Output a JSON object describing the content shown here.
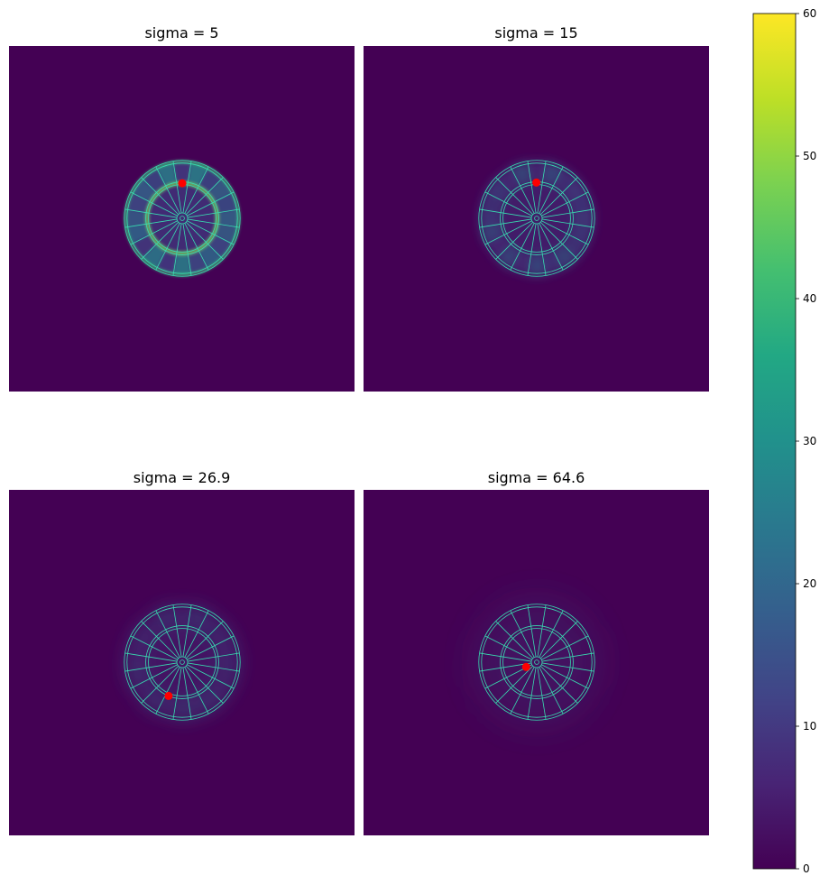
{
  "chart_data": {
    "type": "heatmap",
    "colormap": "viridis",
    "colorbar": {
      "min": 0,
      "max": 60,
      "ticks": [
        0,
        10,
        20,
        30,
        40,
        50,
        60
      ]
    },
    "board": {
      "segments": 20,
      "rings": [
        "inner-bull",
        "outer-bull",
        "triple-inner",
        "triple-outer",
        "double-inner",
        "double-outer"
      ]
    },
    "panels": [
      {
        "title": "sigma = 5",
        "sigma": 5,
        "optimum": {
          "x": 0,
          "y": 103
        },
        "sharp": true
      },
      {
        "title": "sigma = 15",
        "sigma": 15,
        "optimum": {
          "x": -1,
          "y": 105
        },
        "sharp": false
      },
      {
        "title": "sigma = 26.9",
        "sigma": 26.9,
        "optimum": {
          "x": -40,
          "y": -99
        },
        "sharp": false
      },
      {
        "title": "sigma = 64.6",
        "sigma": 64.6,
        "optimum": {
          "x": -31,
          "y": -14
        },
        "sharp": false
      }
    ],
    "marker_color": "#ff0000",
    "grid": false,
    "legend": "none"
  }
}
